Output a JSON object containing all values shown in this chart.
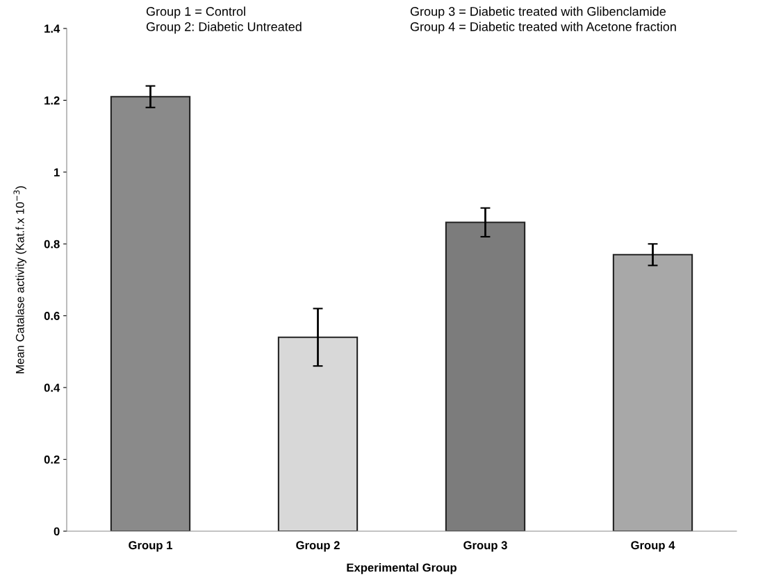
{
  "chart_data": {
    "type": "bar",
    "xlabel": "Experimental Group",
    "ylabel": "Mean Catalase activity (Kat.f.x 10$^{−3}$)",
    "categories": [
      "Group 1",
      "Group 2",
      "Group 3",
      "Group 4"
    ],
    "values": [
      1.21,
      0.54,
      0.86,
      0.77
    ],
    "errors": [
      0.03,
      0.08,
      0.04,
      0.03
    ],
    "colors": [
      "#8a8a8a",
      "#d8d8d8",
      "#7c7c7c",
      "#a8a8a8"
    ],
    "ylim": [
      0,
      1.4
    ],
    "yticks": [
      {
        "value": 0,
        "label": "0"
      },
      0.2,
      0.4,
      0.6,
      0.8,
      {
        "value": 1,
        "label": "1"
      },
      1.2,
      1.4
    ],
    "grid": false,
    "annotations": [
      "Group 1 = Control",
      "Group 2: Diabetic Untreated",
      "Group 3 = Diabetic treated with Glibenclamide",
      "Group 4 = Diabetic treated with Acetone fraction"
    ]
  }
}
